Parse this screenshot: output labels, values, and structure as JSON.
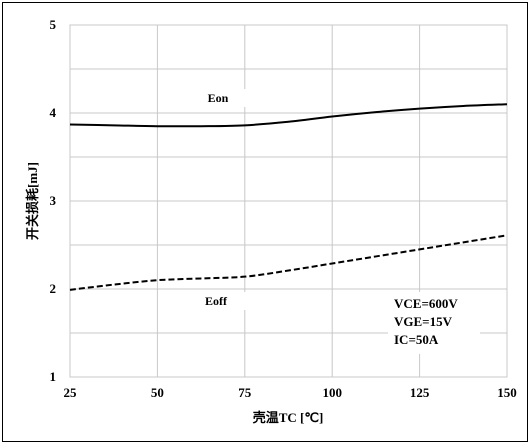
{
  "chart_data": {
    "type": "line",
    "xlabel": "壳温TC [℃]",
    "ylabel": "开关损耗[mJ]",
    "xlim": [
      25,
      150
    ],
    "ylim": [
      1,
      5
    ],
    "xticks": [
      25,
      50,
      75,
      100,
      125,
      150
    ],
    "yticks": [
      1,
      2,
      3,
      4,
      5
    ],
    "grid": true,
    "series": [
      {
        "name": "Eon",
        "style": "solid",
        "x": [
          25,
          37.5,
          50,
          62.5,
          75,
          87.5,
          100,
          112.5,
          125,
          137.5,
          150
        ],
        "y": [
          3.87,
          3.86,
          3.85,
          3.85,
          3.86,
          3.9,
          3.96,
          4.01,
          4.05,
          4.08,
          4.1
        ]
      },
      {
        "name": "Eoff",
        "style": "dashed",
        "x": [
          25,
          37.5,
          50,
          62.5,
          75,
          87.5,
          100,
          112.5,
          125,
          137.5,
          150
        ],
        "y": [
          1.99,
          2.05,
          2.1,
          2.12,
          2.14,
          2.21,
          2.29,
          2.37,
          2.45,
          2.53,
          2.61
        ]
      }
    ],
    "annotations": [
      "VCE=600V",
      "VGE=15V",
      "IC=50A"
    ],
    "color": "#000000"
  }
}
